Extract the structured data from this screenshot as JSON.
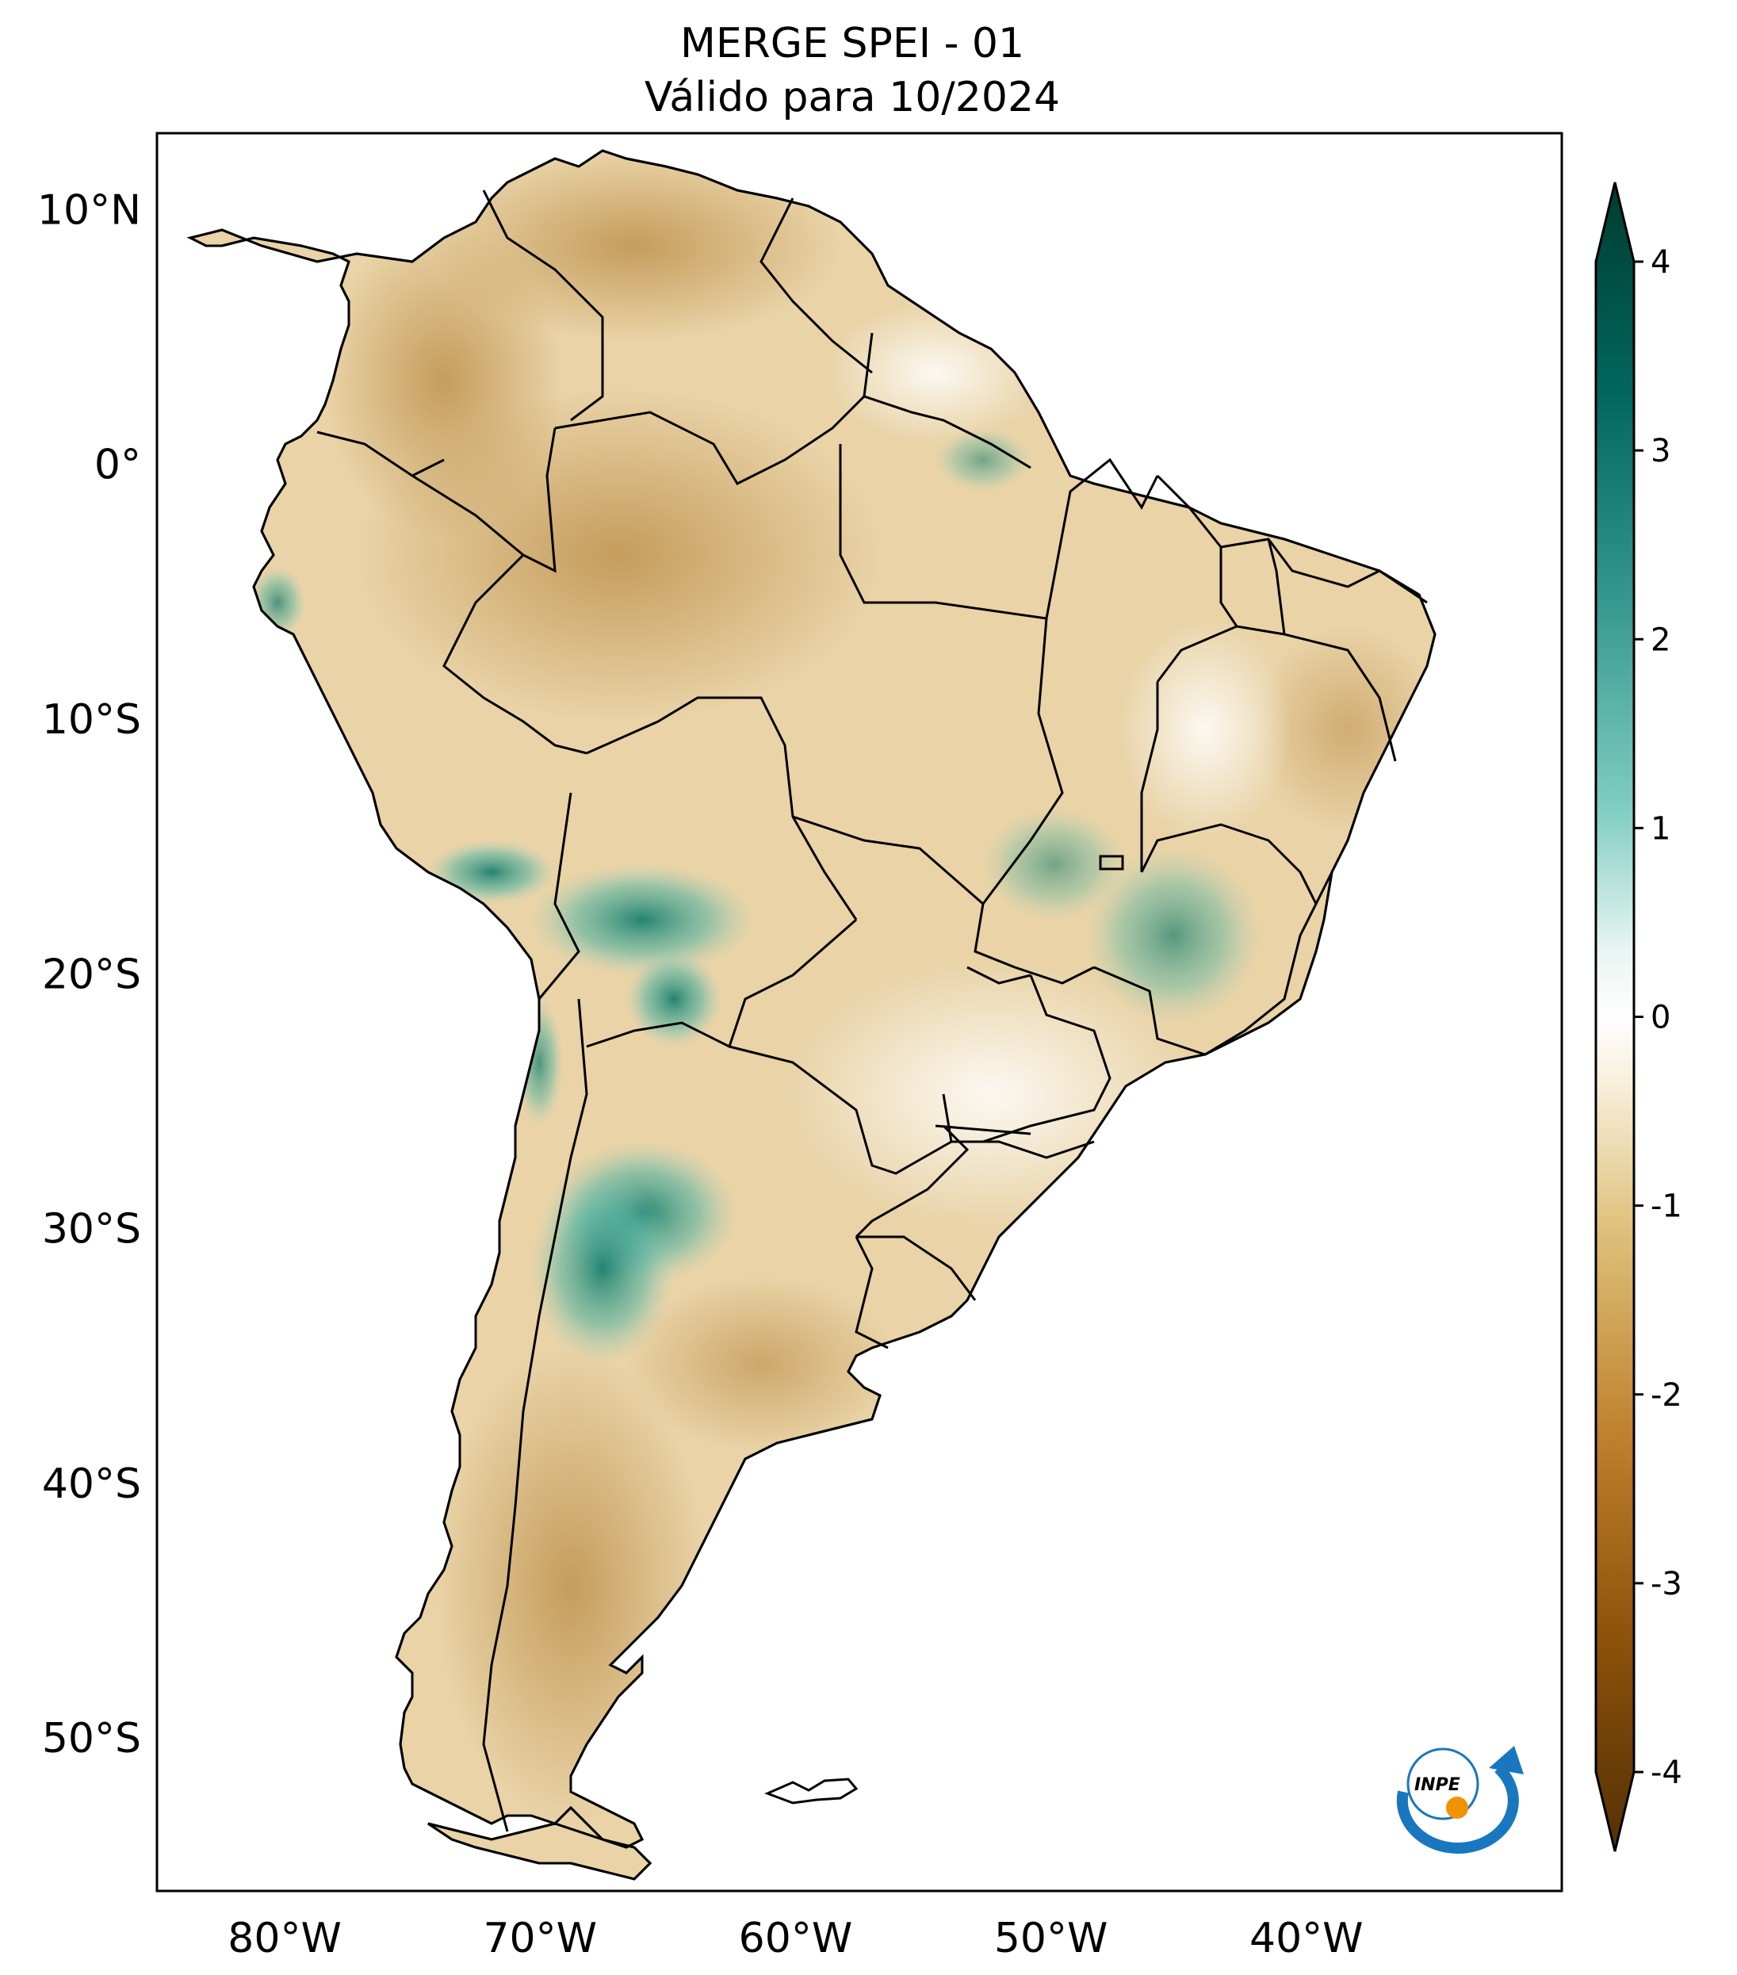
{
  "title": {
    "line1": "MERGE   SPEI - 01",
    "line2": "Válido para 10/2024"
  },
  "map": {
    "region": "South America",
    "lat_labels": [
      "10°N",
      "0°",
      "10°S",
      "20°S",
      "30°S",
      "40°S",
      "50°S"
    ],
    "lon_labels": [
      "80°W",
      "70°W",
      "60°W",
      "50°W",
      "40°W"
    ],
    "lat_values": [
      10,
      0,
      -10,
      -20,
      -30,
      -40,
      -50
    ],
    "lon_values": [
      -80,
      -70,
      -60,
      -50,
      -40
    ],
    "extent": {
      "lon_min": -85,
      "lon_max": -30,
      "lat_min": -56,
      "lat_max": 13
    }
  },
  "colorbar": {
    "min": -4,
    "max": 4,
    "tick_values": [
      4,
      3,
      2,
      1,
      0,
      -1,
      -2,
      -3,
      -4
    ],
    "tick_labels": [
      "4",
      "3",
      "2",
      "1",
      "0",
      "-1",
      "-2",
      "-3",
      "-4"
    ],
    "extend": "both",
    "colors": {
      "min": "#543005",
      "low": "#8c510a",
      "mid_low": "#dfc27d",
      "neutral": "#ffffff",
      "mid_high": "#80cdc1",
      "high": "#01665e",
      "max": "#003c30"
    }
  },
  "logo": {
    "text": "INPE"
  },
  "palette": {
    "dry": "#d9b574",
    "dry_dark": "#b98a43",
    "wet": "#8fd1c4",
    "wet_dark": "#1f8a78",
    "border": "#000000"
  }
}
